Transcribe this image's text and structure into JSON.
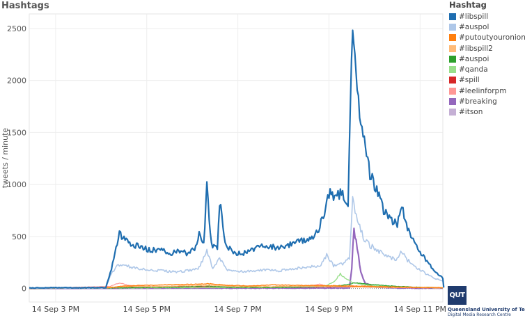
{
  "page": {
    "title": "Hashtags"
  },
  "legend": {
    "title": "Hashtag",
    "items": [
      {
        "label": "#libspill",
        "color": "#1f6eb0"
      },
      {
        "label": "#auspol",
        "color": "#aec7e8"
      },
      {
        "label": "#putoutyouronions",
        "color": "#ff7f0e"
      },
      {
        "label": "#libspill2",
        "color": "#ffbb78"
      },
      {
        "label": "#auspoi",
        "color": "#2ca02c"
      },
      {
        "label": "#qanda",
        "color": "#98df8a"
      },
      {
        "label": "#spill",
        "color": "#d62728"
      },
      {
        "label": "#leelinforpm",
        "color": "#ff9896"
      },
      {
        "label": "#breaking",
        "color": "#9467bd"
      },
      {
        "label": "#itson",
        "color": "#c5b0d5"
      }
    ]
  },
  "logo": {
    "mark": "QUT",
    "line1": "Queensland University of Technology",
    "line2": "Digital Media Research Centre"
  },
  "chart_data": {
    "type": "line",
    "title": "",
    "xlabel": "",
    "ylabel": "tweets / minute",
    "x_unit": "hours (clock time, 14 Sep)",
    "x_range": [
      14.42,
      23.5
    ],
    "ylim": [
      -130,
      2640
    ],
    "xticks": [
      {
        "x": 15,
        "label": "14 Sep 3 PM"
      },
      {
        "x": 17,
        "label": "14 Sep 5 PM"
      },
      {
        "x": 19,
        "label": "14 Sep 7 PM"
      },
      {
        "x": 21,
        "label": "14 Sep 9 PM"
      },
      {
        "x": 23,
        "label": "14 Sep 11 PM"
      }
    ],
    "yticks": [
      0,
      500,
      1000,
      1500,
      2000,
      2500
    ],
    "grid": true,
    "legend_position": "right",
    "series": [
      {
        "name": "#libspill",
        "color": "#1f6eb0",
        "width": 2.2,
        "points": [
          [
            14.42,
            5
          ],
          [
            15.0,
            8
          ],
          [
            15.5,
            6
          ],
          [
            16.1,
            8
          ],
          [
            16.2,
            150
          ],
          [
            16.3,
            330
          ],
          [
            16.4,
            520
          ],
          [
            16.5,
            480
          ],
          [
            16.7,
            420
          ],
          [
            16.9,
            400
          ],
          [
            17.1,
            360
          ],
          [
            17.3,
            390
          ],
          [
            17.5,
            320
          ],
          [
            17.7,
            370
          ],
          [
            17.9,
            330
          ],
          [
            18.05,
            380
          ],
          [
            18.15,
            520
          ],
          [
            18.25,
            430
          ],
          [
            18.32,
            970
          ],
          [
            18.42,
            420
          ],
          [
            18.55,
            380
          ],
          [
            18.6,
            850
          ],
          [
            18.72,
            420
          ],
          [
            18.9,
            350
          ],
          [
            19.1,
            330
          ],
          [
            19.3,
            380
          ],
          [
            19.5,
            400
          ],
          [
            19.7,
            410
          ],
          [
            19.9,
            380
          ],
          [
            20.1,
            420
          ],
          [
            20.3,
            440
          ],
          [
            20.5,
            480
          ],
          [
            20.7,
            510
          ],
          [
            20.85,
            650
          ],
          [
            21.0,
            900
          ],
          [
            21.15,
            880
          ],
          [
            21.3,
            920
          ],
          [
            21.42,
            780
          ],
          [
            21.47,
            1800
          ],
          [
            21.52,
            2580
          ],
          [
            21.57,
            2300
          ],
          [
            21.62,
            1900
          ],
          [
            21.7,
            1600
          ],
          [
            21.8,
            1300
          ],
          [
            21.9,
            1100
          ],
          [
            22.0,
            1000
          ],
          [
            22.1,
            900
          ],
          [
            22.2,
            750
          ],
          [
            22.3,
            700
          ],
          [
            22.4,
            650
          ],
          [
            22.5,
            620
          ],
          [
            22.6,
            800
          ],
          [
            22.7,
            620
          ],
          [
            22.8,
            500
          ],
          [
            22.9,
            420
          ],
          [
            23.0,
            350
          ],
          [
            23.1,
            290
          ],
          [
            23.2,
            230
          ],
          [
            23.3,
            180
          ],
          [
            23.4,
            140
          ],
          [
            23.5,
            100
          ],
          [
            23.52,
            10
          ]
        ]
      },
      {
        "name": "#auspol",
        "color": "#aec7e8",
        "width": 1.6,
        "points": [
          [
            14.42,
            3
          ],
          [
            16.1,
            5
          ],
          [
            16.2,
            120
          ],
          [
            16.35,
            230
          ],
          [
            16.5,
            220
          ],
          [
            16.8,
            190
          ],
          [
            17.0,
            180
          ],
          [
            17.3,
            170
          ],
          [
            17.6,
            160
          ],
          [
            17.9,
            170
          ],
          [
            18.15,
            200
          ],
          [
            18.32,
            360
          ],
          [
            18.45,
            190
          ],
          [
            18.6,
            290
          ],
          [
            18.75,
            180
          ],
          [
            19.0,
            160
          ],
          [
            19.3,
            170
          ],
          [
            19.6,
            180
          ],
          [
            19.9,
            170
          ],
          [
            20.2,
            190
          ],
          [
            20.5,
            200
          ],
          [
            20.8,
            220
          ],
          [
            20.95,
            320
          ],
          [
            21.1,
            220
          ],
          [
            21.3,
            240
          ],
          [
            21.45,
            300
          ],
          [
            21.52,
            900
          ],
          [
            21.6,
            700
          ],
          [
            21.7,
            550
          ],
          [
            21.8,
            450
          ],
          [
            21.95,
            400
          ],
          [
            22.1,
            360
          ],
          [
            22.3,
            300
          ],
          [
            22.5,
            280
          ],
          [
            22.6,
            360
          ],
          [
            22.7,
            280
          ],
          [
            22.9,
            210
          ],
          [
            23.1,
            150
          ],
          [
            23.3,
            100
          ],
          [
            23.5,
            70
          ],
          [
            23.52,
            5
          ]
        ]
      },
      {
        "name": "#putoutyouronions",
        "color": "#ff7f0e",
        "width": 1.4,
        "points": [
          [
            14.42,
            0
          ],
          [
            16.2,
            10
          ],
          [
            16.5,
            25
          ],
          [
            17.0,
            30
          ],
          [
            17.5,
            35
          ],
          [
            18.0,
            40
          ],
          [
            18.4,
            45
          ],
          [
            18.8,
            30
          ],
          [
            19.3,
            25
          ],
          [
            19.8,
            35
          ],
          [
            20.3,
            30
          ],
          [
            20.8,
            28
          ],
          [
            21.3,
            25
          ],
          [
            21.8,
            22
          ],
          [
            22.3,
            15
          ],
          [
            22.8,
            12
          ],
          [
            23.5,
            8
          ]
        ]
      },
      {
        "name": "#libspill2",
        "color": "#ffbb78",
        "width": 1.2,
        "points": [
          [
            14.42,
            0
          ],
          [
            16.2,
            8
          ],
          [
            16.6,
            20
          ],
          [
            17.2,
            18
          ],
          [
            17.8,
            25
          ],
          [
            18.4,
            30
          ],
          [
            19.0,
            20
          ],
          [
            19.6,
            18
          ],
          [
            20.2,
            22
          ],
          [
            20.8,
            18
          ],
          [
            21.4,
            15
          ],
          [
            22.0,
            12
          ],
          [
            22.6,
            10
          ],
          [
            23.5,
            5
          ]
        ]
      },
      {
        "name": "#auspoi",
        "color": "#2ca02c",
        "width": 1.2,
        "points": [
          [
            14.42,
            0
          ],
          [
            16.2,
            5
          ],
          [
            17.0,
            10
          ],
          [
            17.8,
            15
          ],
          [
            18.3,
            25
          ],
          [
            18.8,
            12
          ],
          [
            19.5,
            10
          ],
          [
            20.2,
            12
          ],
          [
            20.9,
            18
          ],
          [
            21.3,
            30
          ],
          [
            21.6,
            55
          ],
          [
            21.9,
            40
          ],
          [
            22.3,
            25
          ],
          [
            22.8,
            15
          ],
          [
            23.5,
            5
          ]
        ]
      },
      {
        "name": "#qanda",
        "color": "#98df8a",
        "width": 1.4,
        "points": [
          [
            14.42,
            0
          ],
          [
            16.2,
            5
          ],
          [
            18.0,
            8
          ],
          [
            20.0,
            10
          ],
          [
            20.9,
            20
          ],
          [
            21.1,
            60
          ],
          [
            21.25,
            140
          ],
          [
            21.35,
            100
          ],
          [
            21.5,
            60
          ],
          [
            21.7,
            40
          ],
          [
            22.0,
            25
          ],
          [
            22.5,
            15
          ],
          [
            23.5,
            5
          ]
        ]
      },
      {
        "name": "#spill",
        "color": "#d62728",
        "width": 1.2,
        "points": [
          [
            14.42,
            0
          ],
          [
            16.2,
            5
          ],
          [
            16.8,
            12
          ],
          [
            17.4,
            15
          ],
          [
            18.0,
            18
          ],
          [
            18.6,
            12
          ],
          [
            19.2,
            10
          ],
          [
            19.8,
            12
          ],
          [
            20.4,
            14
          ],
          [
            21.0,
            15
          ],
          [
            21.6,
            20
          ],
          [
            22.2,
            12
          ],
          [
            23.5,
            5
          ]
        ]
      },
      {
        "name": "#leelinforpm",
        "color": "#ff9896",
        "width": 1.2,
        "points": [
          [
            14.42,
            0
          ],
          [
            16.2,
            20
          ],
          [
            16.4,
            55
          ],
          [
            16.6,
            30
          ],
          [
            17.0,
            20
          ],
          [
            17.6,
            15
          ],
          [
            18.2,
            20
          ],
          [
            18.8,
            15
          ],
          [
            19.4,
            12
          ],
          [
            20.0,
            15
          ],
          [
            20.6,
            25
          ],
          [
            20.8,
            40
          ],
          [
            21.0,
            20
          ],
          [
            21.6,
            15
          ],
          [
            22.4,
            10
          ],
          [
            23.5,
            5
          ]
        ]
      },
      {
        "name": "#breaking",
        "color": "#9467bd",
        "width": 2.2,
        "points": [
          [
            14.42,
            0
          ],
          [
            21.45,
            5
          ],
          [
            21.5,
            200
          ],
          [
            21.55,
            590
          ],
          [
            21.62,
            380
          ],
          [
            21.7,
            150
          ],
          [
            21.8,
            50
          ],
          [
            22.0,
            15
          ],
          [
            22.5,
            5
          ],
          [
            23.5,
            2
          ]
        ]
      },
      {
        "name": "#itson",
        "color": "#c5b0d5",
        "width": 1.2,
        "points": [
          [
            14.42,
            0
          ],
          [
            16.2,
            3
          ],
          [
            18.0,
            6
          ],
          [
            20.0,
            8
          ],
          [
            21.4,
            10
          ],
          [
            21.6,
            15
          ],
          [
            22.2,
            8
          ],
          [
            23.5,
            3
          ]
        ]
      }
    ]
  }
}
